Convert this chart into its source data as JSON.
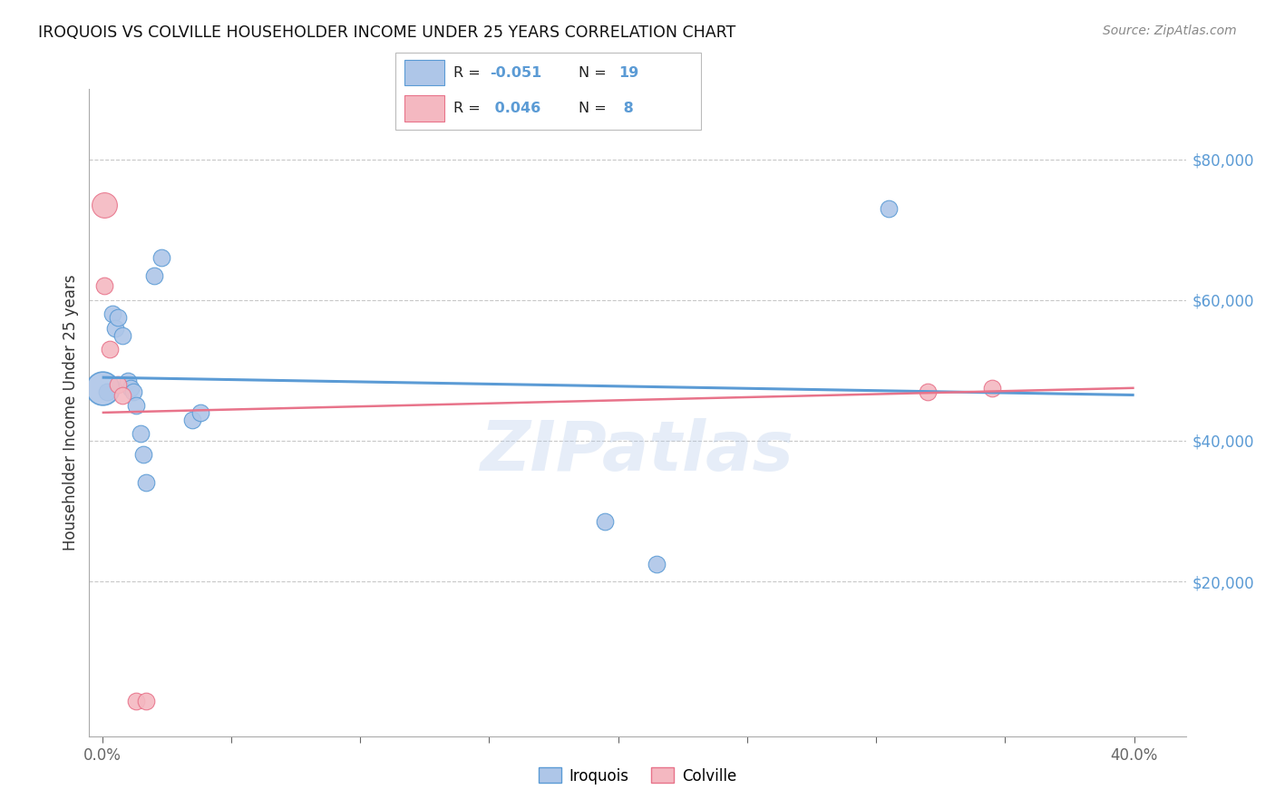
{
  "title": "IROQUOIS VS COLVILLE HOUSEHOLDER INCOME UNDER 25 YEARS CORRELATION CHART",
  "source": "Source: ZipAtlas.com",
  "xlabel_ticks": [
    "0.0%",
    "",
    "",
    "",
    "",
    "",
    "",
    "",
    "40.0%"
  ],
  "xlabel_vals": [
    0.0,
    0.05,
    0.1,
    0.15,
    0.2,
    0.25,
    0.3,
    0.35,
    0.4
  ],
  "ylabel": "Householder Income Under 25 years",
  "ylabel_vals": [
    20000,
    40000,
    60000,
    80000
  ],
  "watermark": "ZIPatlas",
  "iroquois_x": [
    0.002,
    0.004,
    0.005,
    0.006,
    0.008,
    0.01,
    0.011,
    0.012,
    0.013,
    0.015,
    0.016,
    0.017,
    0.02,
    0.023,
    0.035,
    0.038,
    0.195,
    0.215,
    0.305
  ],
  "iroquois_y": [
    47000,
    58000,
    56000,
    57500,
    55000,
    48500,
    47500,
    47000,
    45000,
    41000,
    38000,
    34000,
    63500,
    66000,
    43000,
    44000,
    28500,
    22500,
    73000
  ],
  "colville_x": [
    0.001,
    0.003,
    0.006,
    0.008,
    0.013,
    0.017,
    0.32,
    0.345
  ],
  "colville_y": [
    62000,
    53000,
    48000,
    46500,
    3000,
    3000,
    47000,
    47500
  ],
  "colville_large_x": [
    0.001
  ],
  "colville_large_y": [
    73500
  ],
  "iroquois_large_x": [
    0.0
  ],
  "iroquois_large_y": [
    47500
  ],
  "iroquois_line_x": [
    0.0,
    0.4
  ],
  "iroquois_line_y": [
    49000,
    46500
  ],
  "colville_line_x": [
    0.0,
    0.4
  ],
  "colville_line_y": [
    44000,
    47500
  ],
  "iroquois_color": "#5b9bd5",
  "iroquois_fill": "#aec6e8",
  "colville_color": "#e8738a",
  "colville_fill": "#f4b8c1",
  "bg_color": "#ffffff",
  "grid_color": "#c8c8c8",
  "xlim": [
    -0.005,
    0.42
  ],
  "ylim": [
    -2000,
    90000
  ],
  "legend_r1": "R = -0.051",
  "legend_n1": "N = 19",
  "legend_r2": "R =  0.046",
  "legend_n2": "N =  8",
  "legend_label1": "Iroquois",
  "legend_label2": "Colville"
}
